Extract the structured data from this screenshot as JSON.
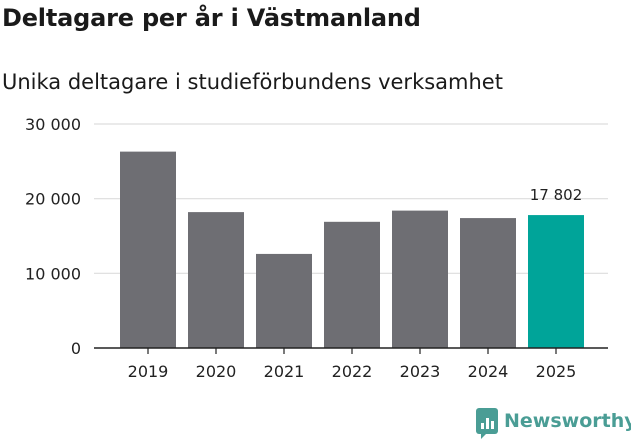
{
  "title": "Deltagare per år i Västmanland",
  "subtitle": "Unika deltagare i studieförbundens verksamhet",
  "brand": {
    "name": "Newsworthy",
    "icon": "bar-chart-icon",
    "color": "#4a9d95"
  },
  "chart_data": {
    "type": "bar",
    "title": "Deltagare per år i Västmanland",
    "subtitle": "Unika deltagare i studieförbundens verksamhet",
    "xlabel": "",
    "ylabel": "",
    "categories": [
      "2019",
      "2020",
      "2021",
      "2022",
      "2023",
      "2024",
      "2025"
    ],
    "values": [
      26300,
      18200,
      12600,
      16900,
      18400,
      17400,
      17802
    ],
    "ylim": [
      0,
      30000
    ],
    "yticks": [
      0,
      10000,
      20000,
      30000
    ],
    "ytick_labels": [
      "0",
      "10 000",
      "20 000",
      "30 000"
    ],
    "grid": true,
    "colors": {
      "default": "#6e6e73",
      "highlight": "#00a499",
      "grid": "#dddddd",
      "axis": "#222222"
    },
    "highlight_index": 6,
    "data_labels": [
      {
        "index": 6,
        "text": "17 802"
      }
    ]
  }
}
